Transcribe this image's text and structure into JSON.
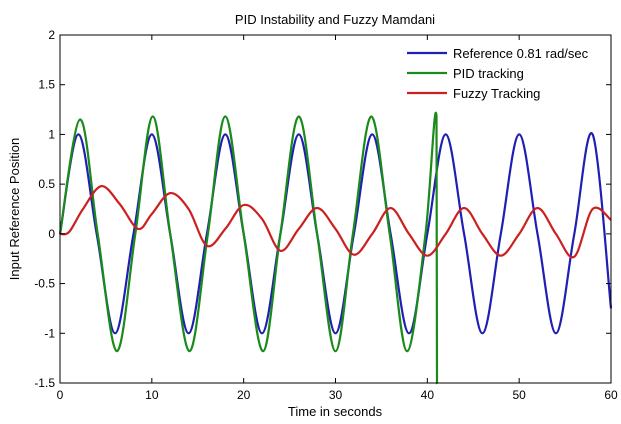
{
  "chart_data": {
    "type": "line",
    "title": "PID Instability and Fuzzy Mamdani",
    "xlabel": "Time in seconds",
    "ylabel": "Input Reference Position",
    "xlim": [
      0,
      60
    ],
    "ylim": [
      -1.5,
      2
    ],
    "x_ticks": [
      0,
      10,
      20,
      30,
      40,
      50,
      60
    ],
    "y_ticks": [
      -1.5,
      -1,
      -0.5,
      0,
      0.5,
      1,
      1.5,
      2
    ],
    "x_tick_labels": [
      "0",
      "10",
      "20",
      "30",
      "40",
      "50",
      "60"
    ],
    "y_tick_labels": [
      "-1.5",
      "-1",
      "-0.5",
      "0",
      "0.5",
      "1",
      "1.5",
      "2"
    ],
    "grid": false,
    "legend_position": "top-right",
    "series": [
      {
        "name": "Reference 0.81 rad/sec",
        "color": "#1f1fb4",
        "x": [
          0,
          2,
          4,
          6,
          8,
          10,
          12,
          14,
          16,
          18,
          20,
          22,
          24,
          26,
          28,
          30,
          32,
          34,
          36,
          38,
          40,
          42,
          44,
          46,
          48,
          50,
          52,
          54,
          56,
          58,
          60
        ],
        "y": [
          0,
          1.0,
          0.0,
          -1.0,
          0.0,
          1.0,
          0.0,
          -1.0,
          0.0,
          1.0,
          0.0,
          -1.0,
          0.0,
          1.0,
          0.0,
          -1.0,
          0.0,
          1.0,
          0.0,
          -1.0,
          0.0,
          1.0,
          0.0,
          -1.0,
          0.0,
          1.0,
          0.0,
          -1.0,
          0.0,
          1.0,
          -0.75
        ]
      },
      {
        "name": "PID tracking",
        "color": "#1a8a1a",
        "x": [
          0,
          2.2,
          4.1,
          6.2,
          8.2,
          10.1,
          12.0,
          14.1,
          16.1,
          18.0,
          20.0,
          22.1,
          24.0,
          26.0,
          28.0,
          30.0,
          31.9,
          33.9,
          35.9,
          37.8,
          39.8,
          41.0,
          41.05,
          41.1
        ],
        "y": [
          0,
          1.15,
          0.0,
          -1.18,
          0.0,
          1.18,
          0.0,
          -1.18,
          0.0,
          1.18,
          0.0,
          -1.18,
          0.0,
          1.18,
          0.0,
          -1.18,
          0.0,
          1.18,
          0.0,
          -1.18,
          0.0,
          1.18,
          -1.5,
          -1.5
        ]
      },
      {
        "name": "Fuzzy Tracking",
        "color": "#cc2020",
        "x": [
          0,
          1,
          2.5,
          4.5,
          6.5,
          8.5,
          10,
          12,
          14,
          16,
          18,
          20,
          22,
          24,
          26,
          28,
          30,
          32,
          34,
          36,
          38,
          40,
          42,
          44,
          46,
          48,
          50,
          52,
          54,
          56,
          58,
          60
        ],
        "y": [
          0,
          0.02,
          0.25,
          0.48,
          0.3,
          0.05,
          0.2,
          0.41,
          0.25,
          -0.12,
          0.05,
          0.29,
          0.15,
          -0.17,
          0.05,
          0.26,
          0.05,
          -0.21,
          0.0,
          0.26,
          0.0,
          -0.22,
          0.0,
          0.26,
          0.0,
          -0.22,
          0.0,
          0.26,
          0.0,
          -0.23,
          0.25,
          0.14
        ]
      }
    ]
  }
}
